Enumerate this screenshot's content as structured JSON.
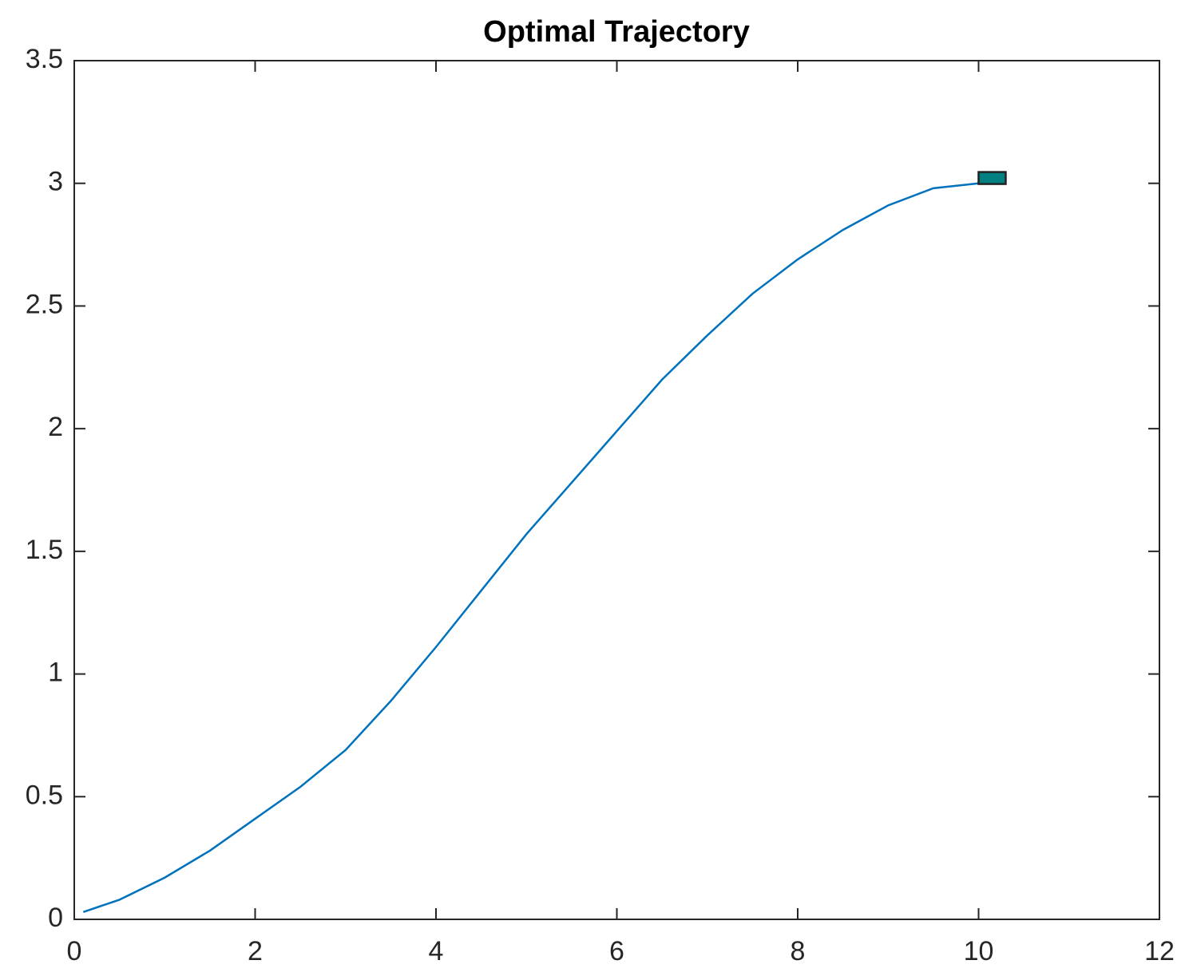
{
  "chart_data": {
    "type": "line",
    "title": "Optimal Trajectory",
    "x": [
      0.1,
      0.5,
      1,
      1.5,
      2,
      2.5,
      3,
      3.5,
      4,
      4.5,
      5,
      5.5,
      6,
      6.5,
      7,
      7.5,
      8,
      8.5,
      9,
      9.5,
      10
    ],
    "series": [
      {
        "color": "#0072bd",
        "values": [
          0.03,
          0.08,
          0.17,
          0.28,
          0.41,
          0.54,
          0.69,
          0.89,
          1.11,
          1.34,
          1.57,
          1.78,
          1.99,
          2.2,
          2.38,
          2.55,
          2.69,
          2.81,
          2.91,
          2.98,
          3.0
        ]
      }
    ],
    "marker": {
      "x": 10.15,
      "y": 3.02,
      "color": "#008080"
    },
    "xlim": [
      0,
      12
    ],
    "xticks": [
      0,
      2,
      4,
      6,
      8,
      10,
      12
    ],
    "ylim": [
      0,
      3.5
    ],
    "yticks": [
      0,
      0.5,
      1,
      1.5,
      2,
      2.5,
      3,
      3.5
    ],
    "grid": false
  }
}
